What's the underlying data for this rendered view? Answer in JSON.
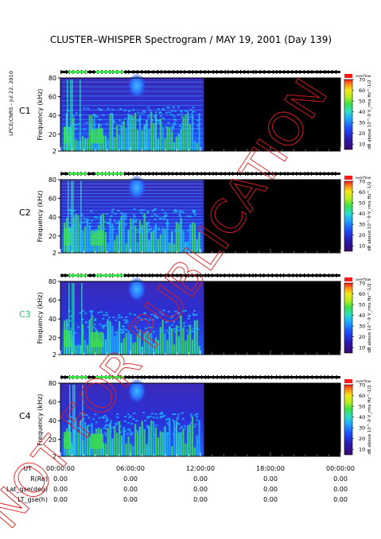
{
  "page": {
    "title": "CLUSTER–WHISPER Spectrogram / MAY 19, 2001 (Day 139)",
    "side_text": "LPCE/CNRS - Jul 22, 2010",
    "watermark": "NOT FOR PUBLICATION"
  },
  "chart_data": [
    {
      "type": "heatmap",
      "panel_label": "C1",
      "ylabel": "Frequency (kHz)",
      "yticks": [
        2,
        20,
        40,
        60,
        80
      ],
      "ylim": [
        2,
        80
      ],
      "x_ticks": [
        "00:00:00",
        "06:00:00",
        "12:00:00",
        "18:00:00",
        "00:00:00"
      ],
      "data_coverage_hours": [
        0,
        12.3
      ],
      "colorbar": {
        "label": "dB above 10^-9 V_rms Hz^-1/2",
        "ticks": [
          10,
          20,
          30,
          40,
          50,
          60,
          70
        ],
        "range": [
          5,
          70
        ],
        "top_label": "overflow"
      }
    },
    {
      "type": "heatmap",
      "panel_label": "C2",
      "ylabel": "Frequency (kHz)",
      "yticks": [
        2,
        20,
        40,
        60,
        80
      ],
      "ylim": [
        2,
        80
      ],
      "x_ticks": [
        "00:00:00",
        "06:00:00",
        "12:00:00",
        "18:00:00",
        "00:00:00"
      ],
      "data_coverage_hours": [
        0,
        12.3
      ],
      "colorbar": {
        "label": "dB above 10^-9 V_rms Hz^-1/2",
        "ticks": [
          10,
          20,
          30,
          40,
          50,
          60,
          70
        ],
        "range": [
          5,
          70
        ],
        "top_label": "overflow"
      }
    },
    {
      "type": "heatmap",
      "panel_label": "C3",
      "ylabel": "Frequency (kHz)",
      "yticks": [
        2,
        20,
        40,
        60,
        80
      ],
      "ylim": [
        2,
        80
      ],
      "x_ticks": [
        "00:00:00",
        "06:00:00",
        "12:00:00",
        "18:00:00",
        "00:00:00"
      ],
      "data_coverage_hours": [
        0,
        12.3
      ],
      "colorbar": {
        "label": "dB above 10^-9 V_rms Hz^-1/2",
        "ticks": [
          10,
          20,
          30,
          40,
          50,
          60,
          70
        ],
        "range": [
          5,
          70
        ],
        "top_label": "overflow"
      }
    },
    {
      "type": "heatmap",
      "panel_label": "C4",
      "ylabel": "Frequency (kHz)",
      "yticks": [
        2,
        20,
        40,
        60,
        80
      ],
      "ylim": [
        2,
        80
      ],
      "x_ticks": [
        "00:00:00",
        "06:00:00",
        "12:00:00",
        "18:00:00",
        "00:00:00"
      ],
      "data_coverage_hours": [
        0,
        12.3
      ],
      "colorbar": {
        "label": "dB above 10^-9 V_rms Hz^-1/2",
        "ticks": [
          10,
          20,
          30,
          40,
          50,
          60,
          70
        ],
        "range": [
          5,
          70
        ],
        "top_label": "overflow"
      }
    }
  ],
  "panel_label_colors": [
    "#000000",
    "#000000",
    "#2fc06a",
    "#000000"
  ],
  "colors": [
    "#000000",
    "#3a0a6e",
    "#2a1ab0",
    "#1f4cff",
    "#1fb0ff",
    "#2ee0c0",
    "#3ce04a",
    "#b8ee20",
    "#f5e81a",
    "#ff8c1a",
    "#ff1a1a"
  ],
  "ephemeris": {
    "rows": [
      {
        "label": "UT",
        "values": [
          "00:00:00",
          "06:00:00",
          "12:00:00",
          "18:00:00",
          "00:00:00"
        ]
      },
      {
        "label": "R(Re)",
        "values": [
          "0.00",
          "0.00",
          "0.00",
          "0.00",
          "0.00"
        ]
      },
      {
        "label": "Lat_gse(deg)",
        "values": [
          "0.00",
          "0.00",
          "0.00",
          "0.00",
          "0.00"
        ]
      },
      {
        "label": "LT_gse(h)",
        "values": [
          "0.00",
          "0.00",
          "0.00",
          "0.00",
          "0.00"
        ]
      }
    ]
  }
}
